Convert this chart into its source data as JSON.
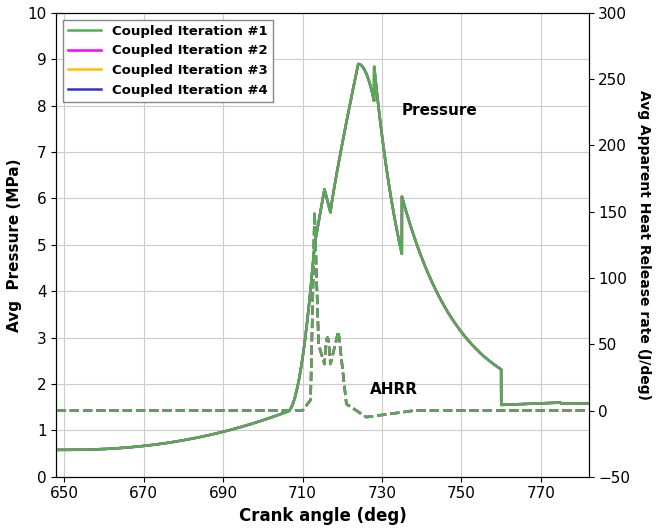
{
  "title": "",
  "xlabel": "Crank angle (deg)",
  "ylabel_left": "Avg  Pressure (MPa)",
  "ylabel_right": "Avg Apparent Heat Release rate (J/deg)",
  "xlim": [
    648,
    782
  ],
  "ylim_left": [
    0,
    10
  ],
  "ylim_right": [
    -50,
    300
  ],
  "xticks": [
    650,
    670,
    690,
    710,
    730,
    750,
    770
  ],
  "yticks_left": [
    0,
    1,
    2,
    3,
    4,
    5,
    6,
    7,
    8,
    9,
    10
  ],
  "yticks_right": [
    -50,
    0,
    50,
    100,
    150,
    200,
    250,
    300
  ],
  "legend_labels": [
    "Coupled Iteration #1",
    "Coupled Iteration #2",
    "Coupled Iteration #3",
    "Coupled Iteration #4"
  ],
  "line_colors": [
    "#4caf50",
    "#ff00ff",
    "#ffc000",
    "#3333cc"
  ],
  "pressure_label": "Pressure",
  "ahrr_label": "AHRR",
  "background_color": "#ffffff",
  "grid_color": "#cccccc"
}
